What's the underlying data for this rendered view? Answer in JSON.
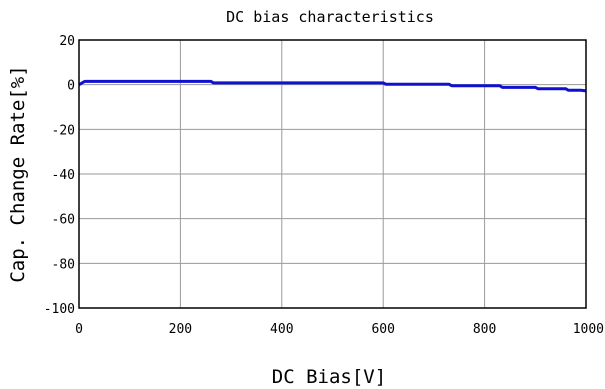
{
  "chart_data": {
    "type": "line",
    "title": "DC bias characteristics",
    "xlabel": "DC Bias[V]",
    "ylabel": "Cap. Change Rate[%]",
    "xlim": [
      0,
      1000
    ],
    "ylim": [
      -100,
      20
    ],
    "xticks": [
      "0",
      "200",
      "400",
      "600",
      "800",
      "1000"
    ],
    "yticks": [
      "20",
      "0",
      "-20",
      "-40",
      "-60",
      "-80",
      "-100"
    ],
    "grid": true,
    "series": [
      {
        "color": "#1010d0",
        "x": [
          0,
          10,
          12,
          50,
          100,
          150,
          200,
          260,
          265,
          300,
          400,
          500,
          600,
          605,
          700,
          730,
          735,
          800,
          830,
          835,
          880,
          900,
          905,
          950,
          960,
          965,
          990,
          1000
        ],
        "y": [
          0.0,
          1.3,
          1.5,
          1.5,
          1.5,
          1.5,
          1.5,
          1.5,
          0.8,
          0.8,
          0.8,
          0.8,
          0.8,
          0.2,
          0.2,
          0.2,
          -0.5,
          -0.5,
          -0.5,
          -1.2,
          -1.2,
          -1.2,
          -1.8,
          -1.8,
          -1.8,
          -2.5,
          -2.5,
          -2.8
        ]
      }
    ]
  }
}
